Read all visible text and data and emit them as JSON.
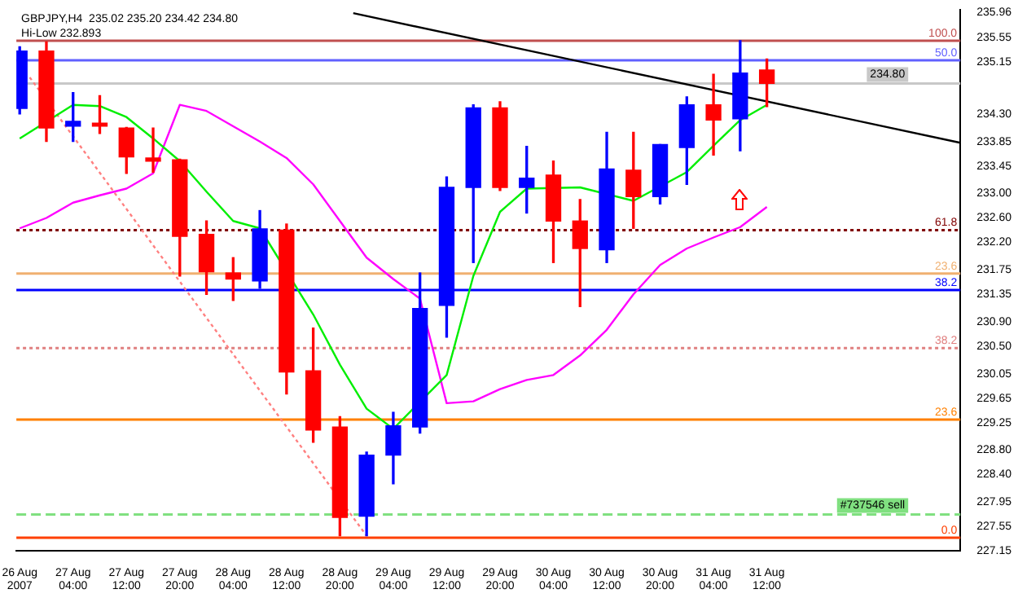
{
  "chart_data": {
    "type": "candlestick",
    "title": "GBPJPY,H4  235.02 235.20 234.42 234.80",
    "subtitle": "Hi-Low 232.893",
    "x": [
      "2007-08-26T20:00",
      "2007-08-27T00:00",
      "2007-08-27T04:00",
      "2007-08-27T08:00",
      "2007-08-27T12:00",
      "2007-08-27T16:00",
      "2007-08-27T20:00",
      "2007-08-28T00:00",
      "2007-08-28T04:00",
      "2007-08-28T08:00",
      "2007-08-28T12:00",
      "2007-08-28T16:00",
      "2007-08-28T20:00",
      "2007-08-29T00:00",
      "2007-08-29T04:00",
      "2007-08-29T08:00",
      "2007-08-29T12:00",
      "2007-08-29T16:00",
      "2007-08-29T20:00",
      "2007-08-30T00:00",
      "2007-08-30T04:00",
      "2007-08-30T08:00",
      "2007-08-30T12:00",
      "2007-08-30T16:00",
      "2007-08-30T20:00",
      "2007-08-31T00:00",
      "2007-08-31T04:00",
      "2007-08-31T08:00",
      "2007-08-31T12:00"
    ],
    "ohlc": [
      [
        234.39,
        235.4,
        234.3,
        235.33
      ],
      [
        235.33,
        235.48,
        233.85,
        234.07
      ],
      [
        234.1,
        234.65,
        233.85,
        234.18
      ],
      [
        234.15,
        234.6,
        233.98,
        234.1
      ],
      [
        234.07,
        234.08,
        233.33,
        233.6
      ],
      [
        233.58,
        234.07,
        233.35,
        233.53
      ],
      [
        233.55,
        233.56,
        231.65,
        232.3
      ],
      [
        232.33,
        232.55,
        231.35,
        231.72
      ],
      [
        231.7,
        231.95,
        231.25,
        231.6
      ],
      [
        231.57,
        232.72,
        231.45,
        232.42
      ],
      [
        232.4,
        232.5,
        229.72,
        230.08
      ],
      [
        230.1,
        230.8,
        228.93,
        229.13
      ],
      [
        229.18,
        229.35,
        227.4,
        227.7
      ],
      [
        227.72,
        228.77,
        227.4,
        228.72
      ],
      [
        228.72,
        229.42,
        228.25,
        229.2
      ],
      [
        229.18,
        231.7,
        229.08,
        231.12
      ],
      [
        231.17,
        233.27,
        230.65,
        233.1
      ],
      [
        233.1,
        234.45,
        231.87,
        234.4
      ],
      [
        234.4,
        234.5,
        233.05,
        233.1
      ],
      [
        233.1,
        233.77,
        232.68,
        233.25
      ],
      [
        233.3,
        233.53,
        231.87,
        232.55
      ],
      [
        232.55,
        232.9,
        231.15,
        232.1
      ],
      [
        232.08,
        234.0,
        231.87,
        233.4
      ],
      [
        233.38,
        234.0,
        232.43,
        232.95
      ],
      [
        232.95,
        233.8,
        232.83,
        233.8
      ],
      [
        233.75,
        234.58,
        233.15,
        234.45
      ],
      [
        234.45,
        234.95,
        233.63,
        234.2
      ],
      [
        234.22,
        235.5,
        233.7,
        234.97
      ],
      [
        235.02,
        235.2,
        234.42,
        234.8
      ]
    ],
    "colors": [
      "#0000ff",
      "#ff0000",
      "#0000ff",
      "#ff0000",
      "#ff0000",
      "#ff0000",
      "#ff0000",
      "#ff0000",
      "#ff0000",
      "#0000ff",
      "#ff0000",
      "#ff0000",
      "#ff0000",
      "#0000ff",
      "#0000ff",
      "#0000ff",
      "#0000ff",
      "#0000ff",
      "#ff0000",
      "#0000ff",
      "#ff0000",
      "#ff0000",
      "#0000ff",
      "#ff0000",
      "#0000ff",
      "#0000ff",
      "#ff0000",
      "#0000ff",
      "#ff0000"
    ],
    "series": [
      {
        "type": "line",
        "color": "#00ee00",
        "values": [
          233.9,
          null,
          234.45,
          234.43,
          234.25,
          233.9,
          233.53,
          233.03,
          232.55,
          232.43,
          null,
          231.02,
          230.2,
          229.48,
          229.15,
          null,
          230.03,
          231.65,
          232.7,
          233.08,
          null,
          233.1,
          null,
          232.88,
          null,
          233.35,
          233.78,
          234.2,
          234.45
        ]
      },
      {
        "type": "line",
        "color": "#ff00ff",
        "values": [
          232.43,
          232.6,
          232.85,
          232.97,
          233.08,
          233.33,
          234.45,
          234.35,
          234.1,
          233.85,
          233.58,
          233.15,
          232.55,
          231.95,
          231.6,
          231.28,
          229.57,
          229.6,
          229.8,
          229.95,
          230.03,
          230.35,
          230.77,
          231.35,
          231.83,
          232.1,
          232.28,
          232.45,
          232.78
        ]
      },
      {
        "type": "line",
        "color": "#000000",
        "x": [
          "2007-08-28T22:00",
          "2007-09-01T17:00"
        ],
        "values": [
          235.95,
          233.83
        ]
      },
      {
        "type": "line",
        "color": "#ff8080",
        "line_style": "dotted",
        "x": [
          "2007-08-26T21:30",
          "2007-08-29T00:00"
        ],
        "values": [
          234.9,
          227.4
        ]
      }
    ],
    "xlim": [
      "2007-08-26T19:30",
      "2007-09-01T17:00"
    ],
    "xticks": [
      {
        "value": "2007-08-26T20:00",
        "label": "26 Aug 2007"
      },
      {
        "value": "2007-08-27T04:00",
        "label": "27 Aug 04:00"
      },
      {
        "value": "2007-08-27T12:00",
        "label": "27 Aug 12:00"
      },
      {
        "value": "2007-08-27T20:00",
        "label": "27 Aug 20:00"
      },
      {
        "value": "2007-08-28T04:00",
        "label": "28 Aug 04:00"
      },
      {
        "value": "2007-08-28T12:00",
        "label": "28 Aug 12:00"
      },
      {
        "value": "2007-08-28T20:00",
        "label": "28 Aug 20:00"
      },
      {
        "value": "2007-08-29T04:00",
        "label": "29 Aug 04:00"
      },
      {
        "value": "2007-08-29T12:00",
        "label": "29 Aug 12:00"
      },
      {
        "value": "2007-08-29T20:00",
        "label": "29 Aug 20:00"
      },
      {
        "value": "2007-08-30T04:00",
        "label": "30 Aug 04:00"
      },
      {
        "value": "2007-08-30T12:00",
        "label": "30 Aug 12:00"
      },
      {
        "value": "2007-08-30T20:00",
        "label": "30 Aug 20:00"
      },
      {
        "value": "2007-08-31T04:00",
        "label": "31 Aug 04:00"
      },
      {
        "value": "2007-08-31T12:00",
        "label": "31 Aug 12:00"
      }
    ],
    "ylim": [
      227.15,
      236.0
    ],
    "yticks": [
      235.96,
      235.55,
      235.15,
      {
        "value": 234.3,
        "label": "234.30"
      },
      233.85,
      233.45,
      {
        "value": 233,
        "label": "233.00"
      },
      {
        "value": 232.6,
        "label": "232.60"
      },
      {
        "value": 232.2,
        "label": "232.20"
      },
      231.75,
      231.35,
      {
        "value": 230.9,
        "label": "230.90"
      },
      {
        "value": 230.5,
        "label": "230.50"
      },
      230.05,
      229.65,
      229.25,
      {
        "value": 228.8,
        "label": "228.80"
      },
      {
        "value": 228.4,
        "label": "228.40"
      },
      227.95,
      227.55,
      227.15
    ],
    "ref_lines": [
      {
        "axis": "y",
        "value": 235.5,
        "color": "#c05050"
      },
      {
        "axis": "y",
        "value": 235.18,
        "color": "#6060ff"
      },
      {
        "axis": "y",
        "value": 234.8,
        "label": "234.80",
        "color": "#c8c8c8"
      },
      {
        "axis": "y",
        "value": 232.4,
        "color": "#800000",
        "line_style": "dotted"
      },
      {
        "axis": "y",
        "value": 231.69,
        "color": "#f0b070"
      },
      {
        "axis": "y",
        "value": 231.42,
        "color": "#0000ff"
      },
      {
        "axis": "y",
        "value": 230.47,
        "color": "#e08080",
        "line_style": "dotted"
      },
      {
        "axis": "y",
        "value": 229.3,
        "color": "#ff8000"
      },
      {
        "axis": "y",
        "value": 227.75,
        "label": "#737546 sell",
        "color": "#80e080",
        "line_style": "dashed"
      },
      {
        "axis": "y",
        "value": 227.37,
        "color": "#ff4000"
      }
    ],
    "annotations": [
      {
        "text": "100.0",
        "x": "2007-09-01T17:00",
        "y": 235.5
      },
      {
        "text": "50.0",
        "x": "2007-09-01T17:00",
        "y": 235.18
      },
      {
        "text": "61.8",
        "x": "2007-09-01T17:00",
        "y": 232.4
      },
      {
        "text": "23.6",
        "x": "2007-09-01T17:00",
        "y": 231.69
      },
      {
        "text": "38.2",
        "x": "2007-09-01T17:00",
        "y": 231.42
      },
      {
        "text": "38.2",
        "x": "2007-09-01T17:00",
        "y": 230.47
      },
      {
        "text": "23.6",
        "x": "2007-09-01T17:00",
        "y": 229.3
      },
      {
        "text": "0.0",
        "x": "2007-09-01T17:00",
        "y": 227.37
      }
    ]
  }
}
